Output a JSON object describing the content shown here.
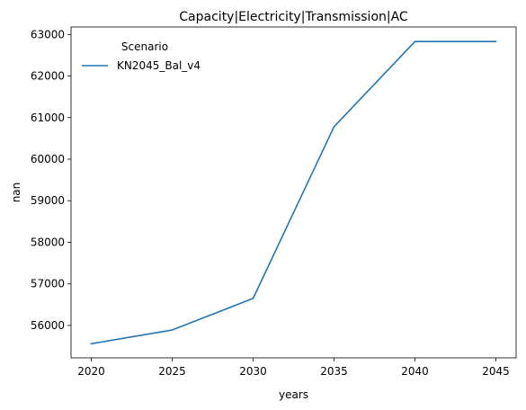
{
  "chart_data": {
    "type": "line",
    "title": "Capacity|Electricity|Transmission|AC",
    "xlabel": "years",
    "ylabel": "nan",
    "x": [
      2020,
      2025,
      2030,
      2035,
      2040,
      2045
    ],
    "xticks": [
      2020,
      2025,
      2030,
      2035,
      2040,
      2045
    ],
    "xlim": [
      2018.75,
      2046.25
    ],
    "yticks": [
      56000,
      57000,
      58000,
      59000,
      60000,
      61000,
      62000,
      63000
    ],
    "ylim": [
      55220,
      63180
    ],
    "grid": false,
    "legend": {
      "title": "Scenario",
      "placement": "upper-left"
    },
    "series": [
      {
        "name": "KN2045_Bal_v4",
        "color": "#1f77b4",
        "values": [
          55560,
          55890,
          56650,
          60780,
          62830,
          62830
        ]
      }
    ]
  }
}
